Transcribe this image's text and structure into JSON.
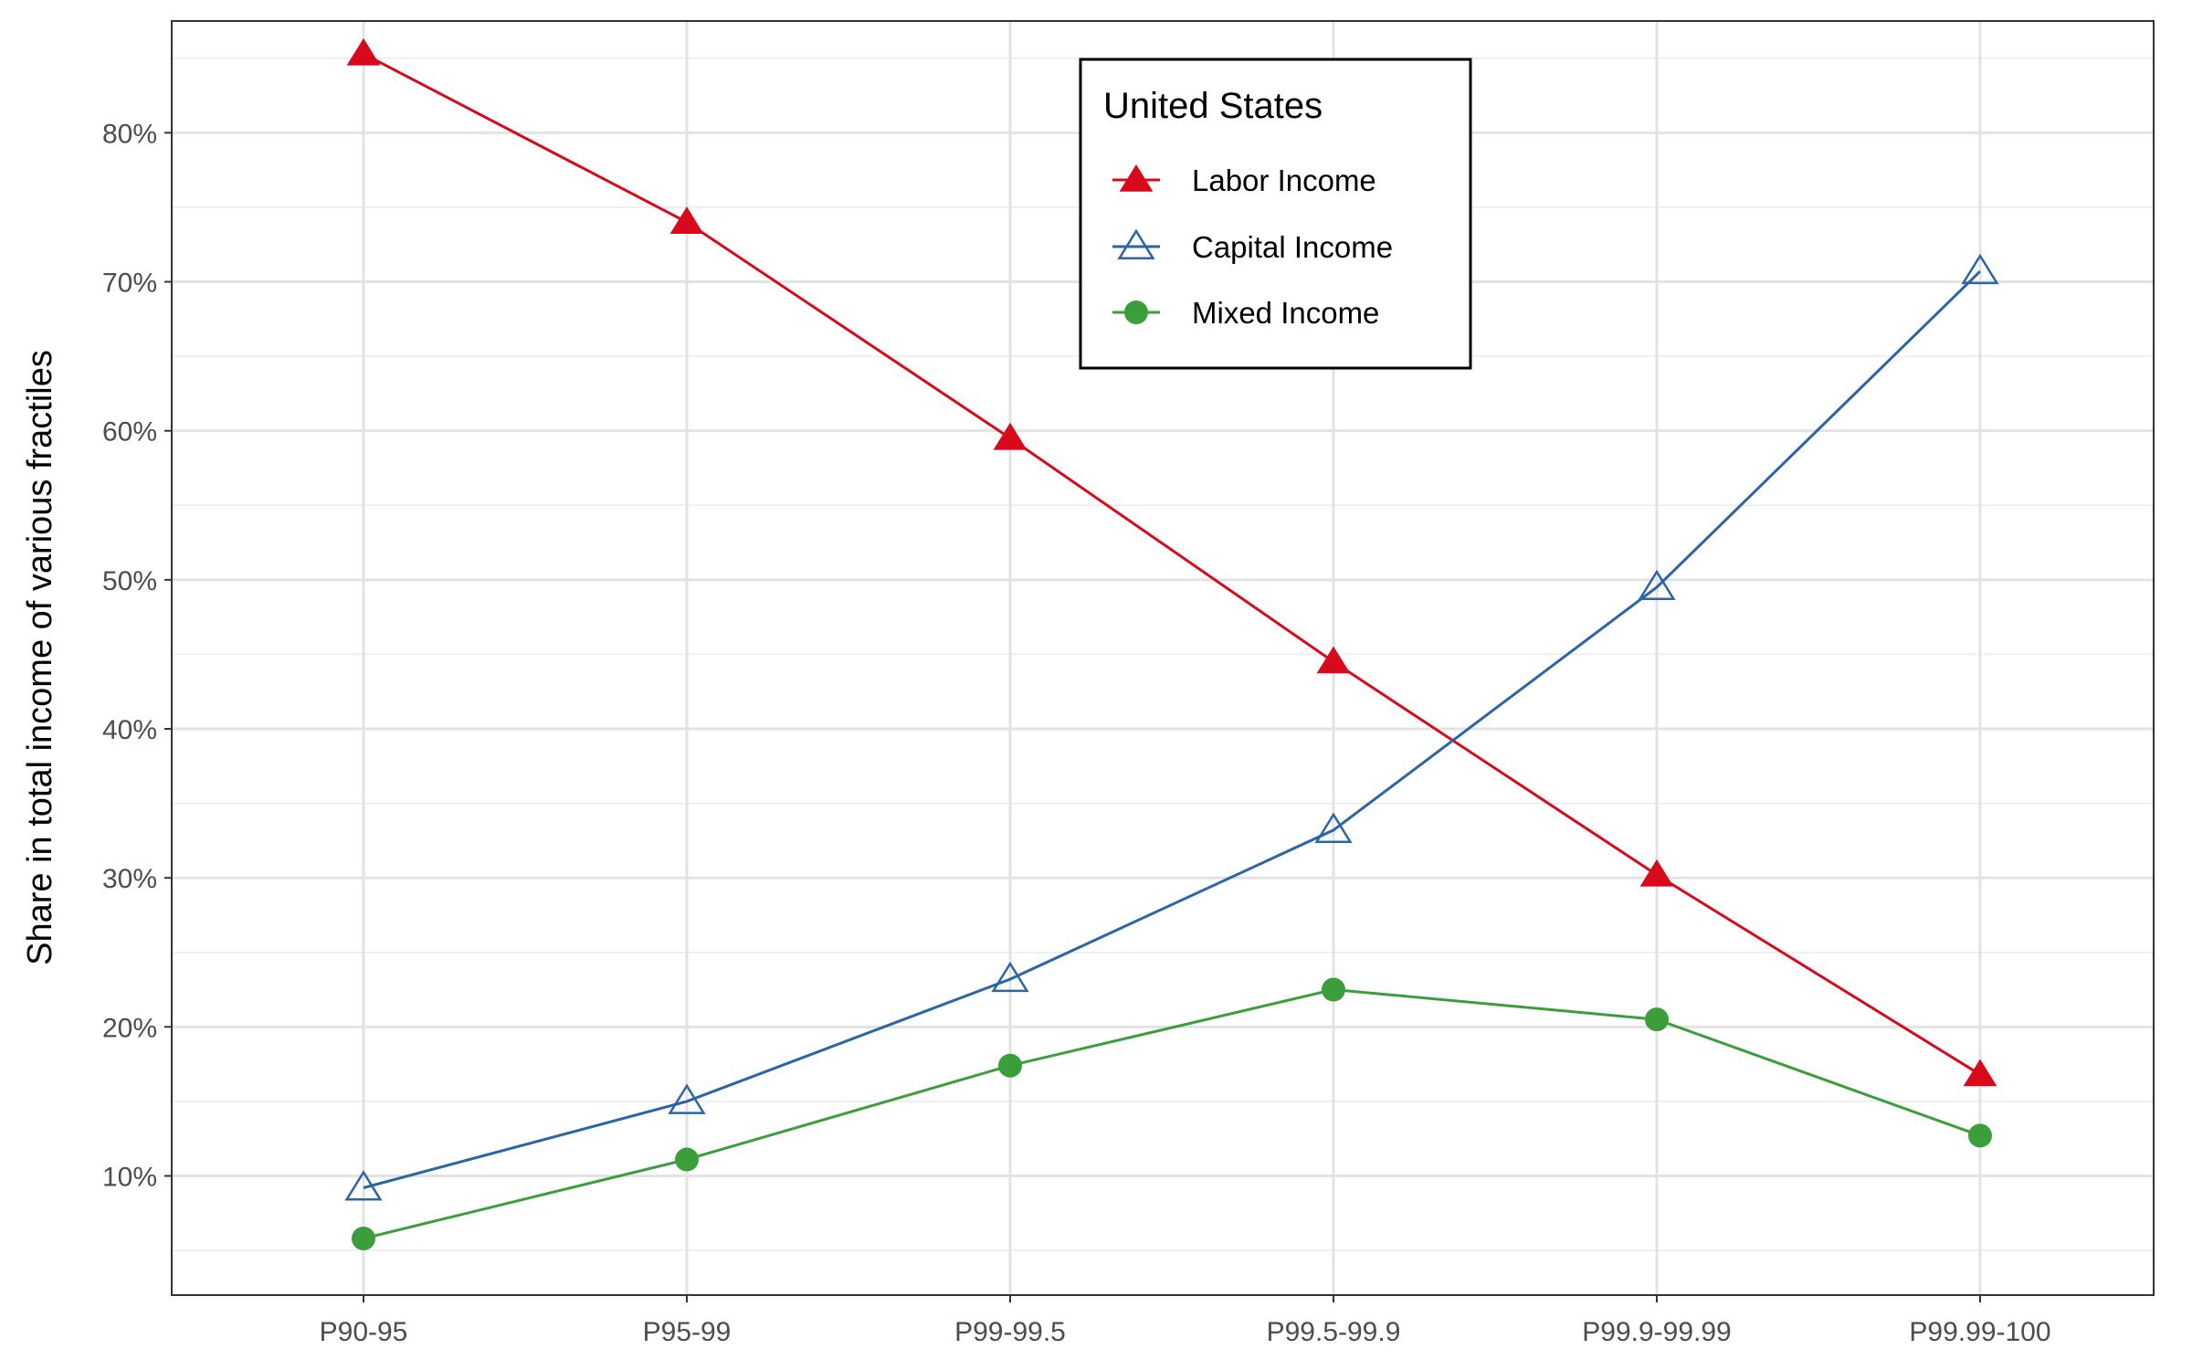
{
  "chart_data": {
    "type": "line",
    "title": "",
    "xlabel": "",
    "ylabel": "Share in total income of various fractiles",
    "categories": [
      "P90-95",
      "P95-99",
      "P99-99.5",
      "P99.5-99.9",
      "P99.9-99.99",
      "P99.99-100"
    ],
    "y_tick_values": [
      10,
      20,
      30,
      40,
      50,
      60,
      70,
      80
    ],
    "y_tick_labels": [
      "10%",
      "20%",
      "30%",
      "40%",
      "50%",
      "60%",
      "70%",
      "80%"
    ],
    "ylim": [
      2.0,
      87.5
    ],
    "grid": true,
    "legend": {
      "title": "United States",
      "position": "top-center",
      "boxed": true
    },
    "series": [
      {
        "name": "Labor Income",
        "color": "#d7091b",
        "marker": "filled-triangle",
        "values": [
          85.3,
          74.0,
          59.5,
          44.5,
          30.2,
          16.8
        ]
      },
      {
        "name": "Capital Income",
        "color": "#2b65a5",
        "marker": "open-triangle",
        "values": [
          9.2,
          15.0,
          23.2,
          33.2,
          49.5,
          70.7
        ]
      },
      {
        "name": "Mixed Income",
        "color": "#3a9f3a",
        "marker": "filled-circle",
        "values": [
          5.8,
          11.1,
          17.4,
          22.5,
          20.5,
          12.7
        ]
      }
    ]
  }
}
